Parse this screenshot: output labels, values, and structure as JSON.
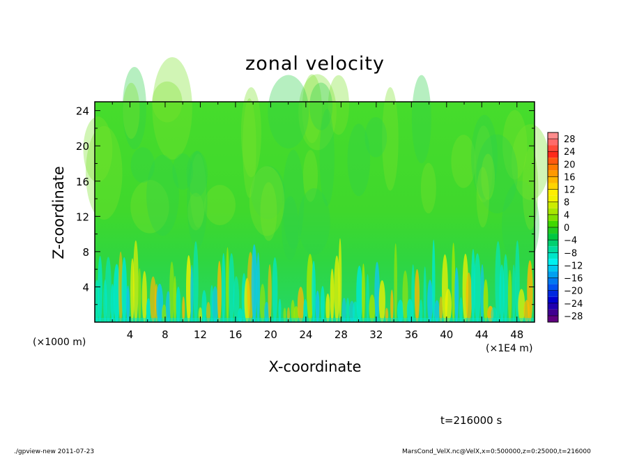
{
  "chart_data": {
    "type": "heatmap",
    "title": "zonal velocity",
    "xlabel": "X-coordinate",
    "ylabel": "Z-coordinate",
    "x_unit_label": "(×1E4 m)",
    "y_unit_label": "(×1000 m)",
    "xlim": [
      0,
      50
    ],
    "ylim": [
      0,
      25
    ],
    "x_ticks": [
      "4",
      "8",
      "12",
      "16",
      "20",
      "24",
      "28",
      "32",
      "36",
      "40",
      "44",
      "48"
    ],
    "y_ticks": [
      "4",
      "8",
      "12",
      "16",
      "20",
      "24"
    ],
    "colorbar": {
      "labels": [
        "28",
        "24",
        "20",
        "16",
        "12",
        "8",
        "4",
        "0",
        "−4",
        "−8",
        "−12",
        "−16",
        "−20",
        "−24",
        "−28"
      ],
      "levels": [
        30,
        28,
        26,
        24,
        22,
        20,
        18,
        16,
        14,
        12,
        10,
        8,
        6,
        4,
        2,
        0,
        -2,
        -4,
        -6,
        -8,
        -10,
        -12,
        -14,
        -16,
        -18,
        -20,
        -22,
        -24,
        -26,
        -28,
        -30
      ],
      "colors": [
        "#ff8c8c",
        "#ff6a6a",
        "#ff4a3a",
        "#ff2a1a",
        "#ff5a10",
        "#ff7a00",
        "#ff9900",
        "#ffb800",
        "#ffd400",
        "#ffee00",
        "#f2f200",
        "#ccec00",
        "#a8e600",
        "#7fe000",
        "#3fd800",
        "#20cc20",
        "#00c840",
        "#00d070",
        "#00dca0",
        "#00e6c8",
        "#00f0f0",
        "#00c8f0",
        "#00a0f0",
        "#0078f0",
        "#0050f0",
        "#0028e0",
        "#0000d0",
        "#2000b0",
        "#400090",
        "#600080"
      ]
    }
  },
  "annotations": {
    "time": "t=216000 s",
    "footer_left": "./gpview-new   2011-07-23",
    "footer_right": "MarsCond_VelX.nc@VelX,x=0:500000,z=0:25000,t=216000"
  }
}
